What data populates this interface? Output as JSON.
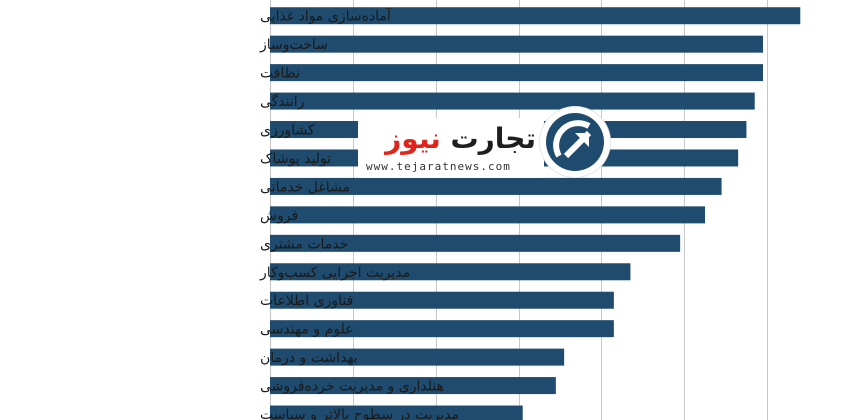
{
  "chart_data": {
    "type": "bar",
    "orientation": "horizontal",
    "categories": [
      "آماده‌سازی مواد غذایی",
      "ساخت‌وساز",
      "نظافت",
      "رانندگی",
      "کشاورزی",
      "تولید پوشاک",
      "مشاغل خدماتی",
      "فروش",
      "خدمات مشتری",
      "مدیریت اجرایی کسب‌وکار",
      "فناوری اطلاعات",
      "علوم و مهندسی",
      "بهداشت و درمان",
      "هتلداری و مدیریت خرده‌فروشی",
      "مدیریت در سطوح بالاتر و سیاست"
    ],
    "values": [
      64,
      59.5,
      59.5,
      58.5,
      57.5,
      56.5,
      54.5,
      52.5,
      49.5,
      43.5,
      41.5,
      41.5,
      35.5,
      34.5,
      30.5
    ],
    "xlim": [
      0,
      70
    ],
    "grid": true,
    "bar_color": "#1e4b6e",
    "grid_color": "#c8c8c8"
  },
  "logo": {
    "word1": "تجارت",
    "word2": "نیوز",
    "url": "www.tejaratnews.com",
    "circle_color": "#1e4b6e",
    "accent_color": "#e0241b"
  }
}
